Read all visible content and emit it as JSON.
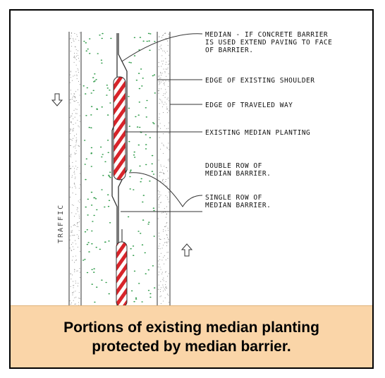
{
  "labels": {
    "median_line1": "MEDIAN - IF CONCRETE BARRIER",
    "median_line2": "IS USED EXTEND PAVING TO FACE",
    "median_line3": "OF BARRIER.",
    "edge_shoulder": "EDGE OF EXISTING SHOULDER",
    "edge_traveled": "EDGE OF TRAVELED WAY",
    "existing_planting": "EXISTING MEDIAN PLANTING",
    "double_row_line1": "DOUBLE ROW OF",
    "double_row_line2": "MEDIAN BARRIER.",
    "single_row_line1": "SINGLE ROW OF",
    "single_row_line2": "MEDIAN BARRIER."
  },
  "traffic_label": "TRAFFIC",
  "caption": {
    "line1": "Portions of existing median planting",
    "line2": "protected by median barrier."
  },
  "colors": {
    "planting": "#2e9a48",
    "barrier_stripe": "#d8242a",
    "caption_bg": "#fad5a8"
  }
}
